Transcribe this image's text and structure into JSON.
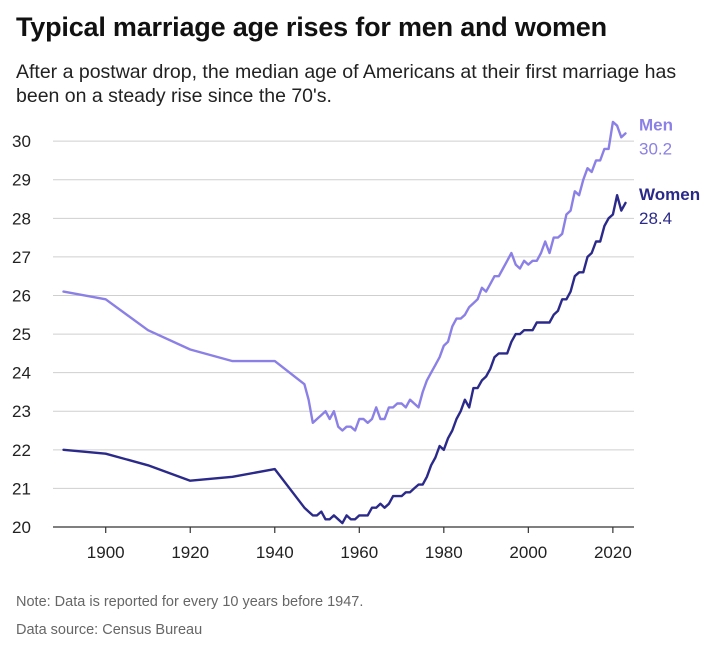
{
  "title": "Typical marriage age rises for men and women",
  "subtitle": "After a postwar drop, the median age of Americans at their first marriage has been on a steady rise since the 70's.",
  "note": "Note: Data is reported for every 10 years before 1947.",
  "source": "Data source: Census Bureau",
  "colors": {
    "men": "#8b80e6",
    "women": "#2b2a8a",
    "grid": "#cfcfcf",
    "axis": "#333333"
  },
  "chart_data": {
    "type": "line",
    "title": "Typical marriage age rises for men and women",
    "xlabel": "",
    "ylabel": "",
    "xlim": [
      1888,
      2025
    ],
    "ylim": [
      20,
      30.6
    ],
    "x_ticks": [
      1900,
      1920,
      1940,
      1960,
      1980,
      2000,
      2020
    ],
    "y_ticks": [
      20,
      21,
      22,
      23,
      24,
      25,
      26,
      27,
      28,
      29,
      30
    ],
    "grid": "horizontal",
    "legend": "direct labels at line ends (right)",
    "series": [
      {
        "name": "Men",
        "end_label": "30.2",
        "color": "#8b80e6",
        "points": [
          [
            1890,
            26.1
          ],
          [
            1900,
            25.9
          ],
          [
            1910,
            25.1
          ],
          [
            1920,
            24.6
          ],
          [
            1930,
            24.3
          ],
          [
            1940,
            24.3
          ],
          [
            1947,
            23.7
          ],
          [
            1948,
            23.3
          ],
          [
            1949,
            22.7
          ],
          [
            1950,
            22.8
          ],
          [
            1951,
            22.9
          ],
          [
            1952,
            23.0
          ],
          [
            1953,
            22.8
          ],
          [
            1954,
            23.0
          ],
          [
            1955,
            22.6
          ],
          [
            1956,
            22.5
          ],
          [
            1957,
            22.6
          ],
          [
            1958,
            22.6
          ],
          [
            1959,
            22.5
          ],
          [
            1960,
            22.8
          ],
          [
            1961,
            22.8
          ],
          [
            1962,
            22.7
          ],
          [
            1963,
            22.8
          ],
          [
            1964,
            23.1
          ],
          [
            1965,
            22.8
          ],
          [
            1966,
            22.8
          ],
          [
            1967,
            23.1
          ],
          [
            1968,
            23.1
          ],
          [
            1969,
            23.2
          ],
          [
            1970,
            23.2
          ],
          [
            1971,
            23.1
          ],
          [
            1972,
            23.3
          ],
          [
            1973,
            23.2
          ],
          [
            1974,
            23.1
          ],
          [
            1975,
            23.5
          ],
          [
            1976,
            23.8
          ],
          [
            1977,
            24.0
          ],
          [
            1978,
            24.2
          ],
          [
            1979,
            24.4
          ],
          [
            1980,
            24.7
          ],
          [
            1981,
            24.8
          ],
          [
            1982,
            25.2
          ],
          [
            1983,
            25.4
          ],
          [
            1984,
            25.4
          ],
          [
            1985,
            25.5
          ],
          [
            1986,
            25.7
          ],
          [
            1987,
            25.8
          ],
          [
            1988,
            25.9
          ],
          [
            1989,
            26.2
          ],
          [
            1990,
            26.1
          ],
          [
            1991,
            26.3
          ],
          [
            1992,
            26.5
          ],
          [
            1993,
            26.5
          ],
          [
            1994,
            26.7
          ],
          [
            1995,
            26.9
          ],
          [
            1996,
            27.1
          ],
          [
            1997,
            26.8
          ],
          [
            1998,
            26.7
          ],
          [
            1999,
            26.9
          ],
          [
            2000,
            26.8
          ],
          [
            2001,
            26.9
          ],
          [
            2002,
            26.9
          ],
          [
            2003,
            27.1
          ],
          [
            2004,
            27.4
          ],
          [
            2005,
            27.1
          ],
          [
            2006,
            27.5
          ],
          [
            2007,
            27.5
          ],
          [
            2008,
            27.6
          ],
          [
            2009,
            28.1
          ],
          [
            2010,
            28.2
          ],
          [
            2011,
            28.7
          ],
          [
            2012,
            28.6
          ],
          [
            2013,
            29.0
          ],
          [
            2014,
            29.3
          ],
          [
            2015,
            29.2
          ],
          [
            2016,
            29.5
          ],
          [
            2017,
            29.5
          ],
          [
            2018,
            29.8
          ],
          [
            2019,
            29.8
          ],
          [
            2020,
            30.5
          ],
          [
            2021,
            30.4
          ],
          [
            2022,
            30.1
          ],
          [
            2023,
            30.2
          ]
        ]
      },
      {
        "name": "Women",
        "end_label": "28.4",
        "color": "#2b2a8a",
        "points": [
          [
            1890,
            22.0
          ],
          [
            1900,
            21.9
          ],
          [
            1910,
            21.6
          ],
          [
            1920,
            21.2
          ],
          [
            1930,
            21.3
          ],
          [
            1940,
            21.5
          ],
          [
            1947,
            20.5
          ],
          [
            1948,
            20.4
          ],
          [
            1949,
            20.3
          ],
          [
            1950,
            20.3
          ],
          [
            1951,
            20.4
          ],
          [
            1952,
            20.2
          ],
          [
            1953,
            20.2
          ],
          [
            1954,
            20.3
          ],
          [
            1955,
            20.2
          ],
          [
            1956,
            20.1
          ],
          [
            1957,
            20.3
          ],
          [
            1958,
            20.2
          ],
          [
            1959,
            20.2
          ],
          [
            1960,
            20.3
          ],
          [
            1961,
            20.3
          ],
          [
            1962,
            20.3
          ],
          [
            1963,
            20.5
          ],
          [
            1964,
            20.5
          ],
          [
            1965,
            20.6
          ],
          [
            1966,
            20.5
          ],
          [
            1967,
            20.6
          ],
          [
            1968,
            20.8
          ],
          [
            1969,
            20.8
          ],
          [
            1970,
            20.8
          ],
          [
            1971,
            20.9
          ],
          [
            1972,
            20.9
          ],
          [
            1973,
            21.0
          ],
          [
            1974,
            21.1
          ],
          [
            1975,
            21.1
          ],
          [
            1976,
            21.3
          ],
          [
            1977,
            21.6
          ],
          [
            1978,
            21.8
          ],
          [
            1979,
            22.1
          ],
          [
            1980,
            22.0
          ],
          [
            1981,
            22.3
          ],
          [
            1982,
            22.5
          ],
          [
            1983,
            22.8
          ],
          [
            1984,
            23.0
          ],
          [
            1985,
            23.3
          ],
          [
            1986,
            23.1
          ],
          [
            1987,
            23.6
          ],
          [
            1988,
            23.6
          ],
          [
            1989,
            23.8
          ],
          [
            1990,
            23.9
          ],
          [
            1991,
            24.1
          ],
          [
            1992,
            24.4
          ],
          [
            1993,
            24.5
          ],
          [
            1994,
            24.5
          ],
          [
            1995,
            24.5
          ],
          [
            1996,
            24.8
          ],
          [
            1997,
            25.0
          ],
          [
            1998,
            25.0
          ],
          [
            1999,
            25.1
          ],
          [
            2000,
            25.1
          ],
          [
            2001,
            25.1
          ],
          [
            2002,
            25.3
          ],
          [
            2003,
            25.3
          ],
          [
            2004,
            25.3
          ],
          [
            2005,
            25.3
          ],
          [
            2006,
            25.5
          ],
          [
            2007,
            25.6
          ],
          [
            2008,
            25.9
          ],
          [
            2009,
            25.9
          ],
          [
            2010,
            26.1
          ],
          [
            2011,
            26.5
          ],
          [
            2012,
            26.6
          ],
          [
            2013,
            26.6
          ],
          [
            2014,
            27.0
          ],
          [
            2015,
            27.1
          ],
          [
            2016,
            27.4
          ],
          [
            2017,
            27.4
          ],
          [
            2018,
            27.8
          ],
          [
            2019,
            28.0
          ],
          [
            2020,
            28.1
          ],
          [
            2021,
            28.6
          ],
          [
            2022,
            28.2
          ],
          [
            2023,
            28.4
          ]
        ]
      }
    ]
  }
}
